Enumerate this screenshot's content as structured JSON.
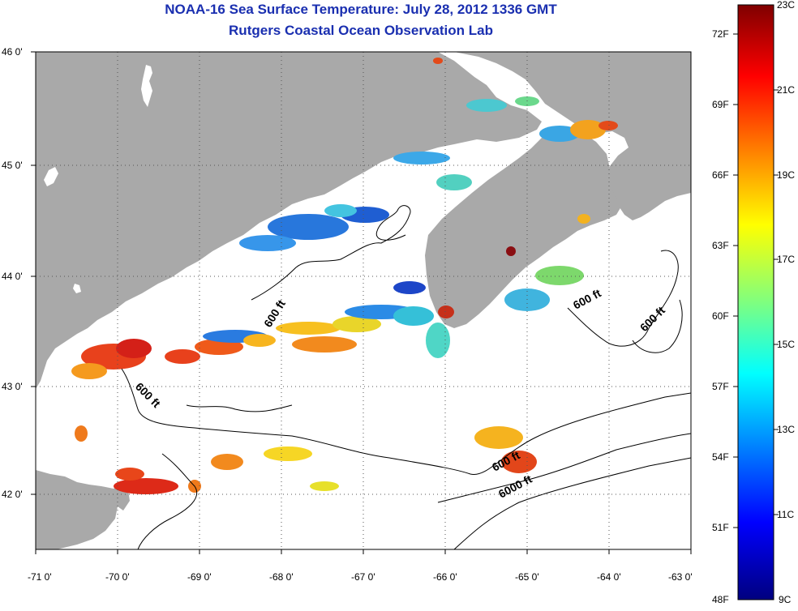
{
  "title": "NOAA-16 Sea Surface Temperature:  July 28, 2012 1336 GMT",
  "subtitle": "Rutgers Coastal Ocean Observation Lab",
  "map": {
    "lon_range": [
      -71,
      -63
    ],
    "lat_range": [
      41.5,
      46
    ],
    "lon_ticks": [
      "-71 0'",
      "-70 0'",
      "-69 0'",
      "-68 0'",
      "-67 0'",
      "-66 0'",
      "-65 0'",
      "-64 0'",
      "-63 0'"
    ],
    "lat_ticks": [
      "46 0'",
      "45 0'",
      "44 0'",
      "43 0'",
      "42 0'"
    ],
    "land_color": "#a9a9a9",
    "gridlines": "dotted",
    "contour_labels": [
      "600 ft",
      "600 ft",
      "600 ft",
      "600 ft",
      "6000 ft"
    ]
  },
  "colorbar": {
    "range_celsius": [
      9,
      23
    ],
    "range_fahrenheit": [
      48,
      73
    ],
    "celsius_labels": [
      "23C",
      "21C",
      "19C",
      "17C",
      "15C",
      "13C",
      "11C",
      "9C"
    ],
    "fahrenheit_labels": [
      "72F",
      "69F",
      "66F",
      "63F",
      "60F",
      "57F",
      "54F",
      "51F",
      "48F"
    ],
    "colormap": "jet"
  }
}
